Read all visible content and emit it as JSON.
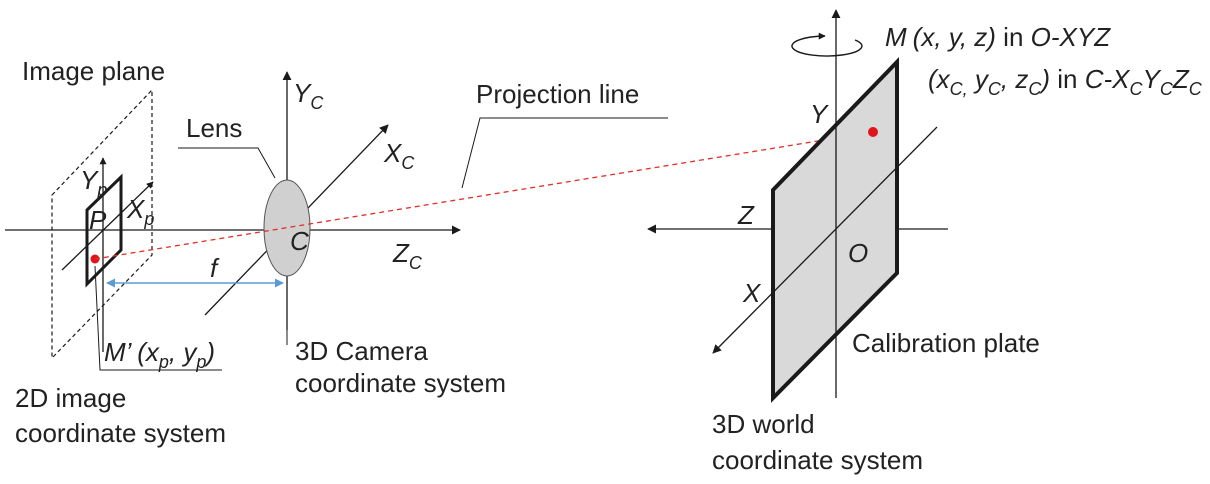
{
  "labels": {
    "image_plane": "Image plane",
    "lens": "Lens",
    "projection_line": "Projection line",
    "camera_system_line1": "3D Camera",
    "camera_system_line2": "coordinate system",
    "image_system_line1": "2D image",
    "image_system_line2": "coordinate system",
    "world_system_line1": "3D world",
    "world_system_line2": "coordinate system",
    "calibration_plate": "Calibration plate",
    "focal_length": "f",
    "camera_center": "C",
    "image_point": "P",
    "world_origin": "O"
  },
  "axes": {
    "camera": {
      "y": "Y",
      "y_sub": "C",
      "x": "X",
      "x_sub": "C",
      "z": "Z",
      "z_sub": "C"
    },
    "image": {
      "y": "Y",
      "y_sub": "p",
      "x": "X",
      "x_sub": "p"
    },
    "world": {
      "x": "X",
      "y": "Y",
      "z": "Z"
    }
  },
  "point_m": {
    "name": "M",
    "coords": "(x, y, z)",
    "in_word": " in ",
    "frame": "O-XYZ",
    "cam_open": "(x",
    "cam_sub_c": "C,",
    "cam_y": " y",
    "cam_z": " z",
    "cam_close": ")",
    "cam_frame_c": "C-X",
    "cam_frame_y": "Y",
    "cam_frame_z": "Z",
    "sub_c": "C"
  },
  "point_m_prime": {
    "name": "M’",
    "open": " (x",
    "sub_p": "p",
    "mid": ", y",
    "close": ")"
  },
  "colors": {
    "line": "#1a1a1a",
    "plate_fill": "#d9d9d9",
    "lens_fill": "#d0d0d0",
    "projection": "#e0302a",
    "focal_arrow": "#5b9bd5",
    "point": "#e0151b"
  }
}
